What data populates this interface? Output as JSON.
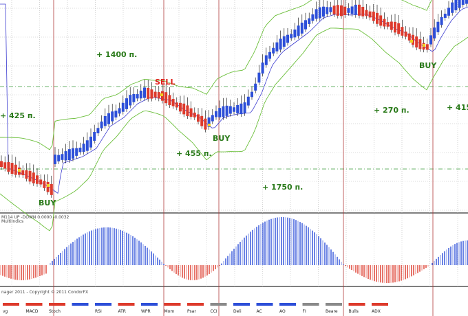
{
  "chart_type": "candlestick",
  "colors": {
    "bull_bar": "#2d4fd8",
    "bear_bar": "#dd3a2c",
    "band": "#6bbf3a",
    "ma": "#3a3ad0",
    "signal_buy": "#2a7a1a",
    "signal_sell": "#e0201a",
    "vline": "#b03a3a",
    "grid": "#b8b8b8"
  },
  "annotations": [
    {
      "id": "buy1",
      "text": "BUY",
      "kind": "buy"
    },
    {
      "id": "sell1",
      "text": "SELL",
      "kind": "sell"
    },
    {
      "id": "buy2",
      "text": "BUY",
      "kind": "buy"
    },
    {
      "id": "buy3",
      "text": "BUY",
      "kind": "buy"
    },
    {
      "id": "pts1",
      "text": "+ 425 п.",
      "kind": "profit"
    },
    {
      "id": "pts2",
      "text": "+ 1400 п.",
      "kind": "profit"
    },
    {
      "id": "pts3",
      "text": "+ 455 п.",
      "kind": "profit"
    },
    {
      "id": "pts4",
      "text": "+ 1750 п.",
      "kind": "profit"
    },
    {
      "id": "pts5",
      "text": "+ 270 п.",
      "kind": "profit"
    },
    {
      "id": "pts6",
      "text": "+ 415",
      "kind": "profit"
    }
  ],
  "indicator": {
    "label": "M114 UP -DOWN 0.0000 -0.0032",
    "sublabel": "MultiIndics"
  },
  "copyright": "nager 2011 - Copyright © 2011 CondorFX",
  "tabs": [
    "vg",
    "MACD",
    "Stoch",
    "",
    "RSI",
    "ATR",
    "WPR",
    "Mom",
    "Psar",
    "CCI",
    "Deli",
    "AC",
    "AO",
    "FI",
    "Beare",
    "Bulls",
    "ADX"
  ],
  "tab_colors": [
    "#dd3a2c",
    "#dd3a2c",
    "#dd3a2c",
    "#2d4fd8",
    "#2d4fd8",
    "#dd3a2c",
    "#2d4fd8",
    "#dd3a2c",
    "#dd3a2c",
    "#8a8a8a",
    "#2d4fd8",
    "#2d4fd8",
    "#2d4fd8",
    "#8a8a8a",
    "#8a8a8a",
    "#dd3a2c",
    "#dd3a2c"
  ]
}
